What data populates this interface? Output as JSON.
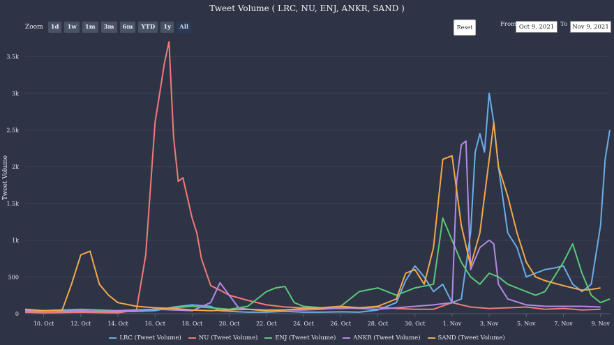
{
  "title": "Tweet Volume ( LRC, NU, ENJ, ANKR, SAND )",
  "zoom": {
    "label": "Zoom",
    "buttons": [
      "1d",
      "1w",
      "1m",
      "3m",
      "6m",
      "YTD",
      "1y",
      "All"
    ],
    "active": "All"
  },
  "reset_label": "Reset",
  "range": {
    "from_label": "From",
    "from_value": "Oct 9, 2021",
    "to_label": "To",
    "to_value": "Nov 9, 2021"
  },
  "chart_data": {
    "type": "line",
    "title": "Tweet Volume ( LRC, NU, ENJ, ANKR, SAND )",
    "ylabel": "Tweet Volume",
    "xlabel": "",
    "ylim": [
      0,
      3700
    ],
    "yticks": [
      0,
      500,
      1000,
      1500,
      2000,
      2500,
      3000,
      3500
    ],
    "ytick_labels": [
      "0",
      "500",
      "1k",
      "1.5k",
      "2k",
      "2.5k",
      "3k",
      "3.5k"
    ],
    "x_range": [
      "2021-10-09",
      "2021-11-09"
    ],
    "xticks": [
      "2021-10-10",
      "2021-10-12",
      "2021-10-14",
      "2021-10-16",
      "2021-10-18",
      "2021-10-20",
      "2021-10-22",
      "2021-10-24",
      "2021-10-26",
      "2021-10-28",
      "2021-10-30",
      "2021-11-01",
      "2021-11-03",
      "2021-11-05",
      "2021-11-07",
      "2021-11-09"
    ],
    "xtick_labels": [
      "10. Oct",
      "12. Oct",
      "14. Oct",
      "16. Oct",
      "18. Oct",
      "20. Oct",
      "22. Oct",
      "24. Oct",
      "26. Oct",
      "28. Oct",
      "30. Oct",
      "1. Nov",
      "3. Nov",
      "5. Nov",
      "7. Nov",
      "9. Nov"
    ],
    "legend_position": "bottom-center",
    "grid": true,
    "series": [
      {
        "name": "LRC (Tweet Volume)",
        "color": "#6aaee8",
        "points": [
          [
            "2021-10-09",
            20
          ],
          [
            "2021-10-10",
            30
          ],
          [
            "2021-10-11",
            40
          ],
          [
            "2021-10-12",
            35
          ],
          [
            "2021-10-13",
            30
          ],
          [
            "2021-10-14",
            25
          ],
          [
            "2021-10-15",
            30
          ],
          [
            "2021-10-16",
            40
          ],
          [
            "2021-10-17",
            90
          ],
          [
            "2021-10-18",
            120
          ],
          [
            "2021-10-19",
            100
          ],
          [
            "2021-10-19 12:00",
            40
          ],
          [
            "2021-10-20",
            30
          ],
          [
            "2021-10-21",
            20
          ],
          [
            "2021-10-22",
            20
          ],
          [
            "2021-10-23",
            30
          ],
          [
            "2021-10-24",
            20
          ],
          [
            "2021-10-25",
            20
          ],
          [
            "2021-10-26",
            25
          ],
          [
            "2021-10-27",
            20
          ],
          [
            "2021-10-28",
            50
          ],
          [
            "2021-10-29",
            150
          ],
          [
            "2021-10-29 12:00",
            450
          ],
          [
            "2021-10-30",
            650
          ],
          [
            "2021-10-30 12:00",
            500
          ],
          [
            "2021-10-31",
            300
          ],
          [
            "2021-10-31 12:00",
            400
          ],
          [
            "2021-11-01",
            150
          ],
          [
            "2021-11-01 12:00",
            200
          ],
          [
            "2021-11-02",
            1100
          ],
          [
            "2021-11-02 06:00",
            2200
          ],
          [
            "2021-11-02 12:00",
            2450
          ],
          [
            "2021-11-02 18:00",
            2200
          ],
          [
            "2021-11-03",
            3000
          ],
          [
            "2021-11-03 06:00",
            2600
          ],
          [
            "2021-11-03 12:00",
            2000
          ],
          [
            "2021-11-04",
            1100
          ],
          [
            "2021-11-04 12:00",
            900
          ],
          [
            "2021-11-05",
            500
          ],
          [
            "2021-11-05 12:00",
            550
          ],
          [
            "2021-11-06",
            600
          ],
          [
            "2021-11-06 12:00",
            620
          ],
          [
            "2021-11-07",
            650
          ],
          [
            "2021-11-07 12:00",
            400
          ],
          [
            "2021-11-08",
            300
          ],
          [
            "2021-11-08 12:00",
            400
          ],
          [
            "2021-11-09",
            1200
          ],
          [
            "2021-11-09 06:00",
            2100
          ],
          [
            "2021-11-09 12:00",
            2500
          ]
        ]
      },
      {
        "name": "NU (Tweet Volume)",
        "color": "#f07b78",
        "points": [
          [
            "2021-10-09",
            20
          ],
          [
            "2021-10-10",
            10
          ],
          [
            "2021-10-11",
            15
          ],
          [
            "2021-10-12",
            20
          ],
          [
            "2021-10-13",
            15
          ],
          [
            "2021-10-14",
            10
          ],
          [
            "2021-10-15",
            50
          ],
          [
            "2021-10-15 12:00",
            800
          ],
          [
            "2021-10-16",
            2600
          ],
          [
            "2021-10-16 06:00",
            3000
          ],
          [
            "2021-10-16 12:00",
            3400
          ],
          [
            "2021-10-16 18:00",
            3700
          ],
          [
            "2021-10-17",
            2400
          ],
          [
            "2021-10-17 06:00",
            1800
          ],
          [
            "2021-10-17 12:00",
            1850
          ],
          [
            "2021-10-18",
            1300
          ],
          [
            "2021-10-18 06:00",
            1100
          ],
          [
            "2021-10-18 12:00",
            750
          ],
          [
            "2021-10-19",
            380
          ],
          [
            "2021-10-19 12:00",
            320
          ],
          [
            "2021-10-20",
            250
          ],
          [
            "2021-10-21",
            180
          ],
          [
            "2021-10-22",
            120
          ],
          [
            "2021-10-23",
            90
          ],
          [
            "2021-10-24",
            80
          ],
          [
            "2021-10-25",
            70
          ],
          [
            "2021-10-26",
            70
          ],
          [
            "2021-10-27",
            80
          ],
          [
            "2021-10-28",
            90
          ],
          [
            "2021-10-29",
            70
          ],
          [
            "2021-10-30",
            60
          ],
          [
            "2021-10-31",
            60
          ],
          [
            "2021-11-01",
            150
          ],
          [
            "2021-11-02",
            90
          ],
          [
            "2021-11-03",
            70
          ],
          [
            "2021-11-04",
            80
          ],
          [
            "2021-11-05",
            90
          ],
          [
            "2021-11-06",
            60
          ],
          [
            "2021-11-07",
            70
          ],
          [
            "2021-11-08",
            50
          ],
          [
            "2021-11-09",
            60
          ]
        ]
      },
      {
        "name": "ENJ (Tweet Volume)",
        "color": "#5bc978",
        "points": [
          [
            "2021-10-09",
            30
          ],
          [
            "2021-10-10",
            40
          ],
          [
            "2021-10-11",
            50
          ],
          [
            "2021-10-12",
            60
          ],
          [
            "2021-10-13",
            50
          ],
          [
            "2021-10-14",
            40
          ],
          [
            "2021-10-15",
            50
          ],
          [
            "2021-10-16",
            60
          ],
          [
            "2021-10-17",
            80
          ],
          [
            "2021-10-18",
            100
          ],
          [
            "2021-10-19",
            80
          ],
          [
            "2021-10-20",
            60
          ],
          [
            "2021-10-21",
            100
          ],
          [
            "2021-10-21 12:00",
            200
          ],
          [
            "2021-10-22",
            300
          ],
          [
            "2021-10-22 12:00",
            350
          ],
          [
            "2021-10-23",
            370
          ],
          [
            "2021-10-23 12:00",
            150
          ],
          [
            "2021-10-24",
            100
          ],
          [
            "2021-10-25",
            80
          ],
          [
            "2021-10-26",
            100
          ],
          [
            "2021-10-27",
            300
          ],
          [
            "2021-10-28",
            350
          ],
          [
            "2021-10-29",
            250
          ],
          [
            "2021-10-30",
            350
          ],
          [
            "2021-10-31",
            400
          ],
          [
            "2021-10-31 12:00",
            1300
          ],
          [
            "2021-11-01",
            1000
          ],
          [
            "2021-11-01 12:00",
            700
          ],
          [
            "2021-11-02",
            500
          ],
          [
            "2021-11-02 12:00",
            400
          ],
          [
            "2021-11-03",
            550
          ],
          [
            "2021-11-03 12:00",
            500
          ],
          [
            "2021-11-04",
            400
          ],
          [
            "2021-11-05",
            300
          ],
          [
            "2021-11-05 12:00",
            250
          ],
          [
            "2021-11-06",
            300
          ],
          [
            "2021-11-06 12:00",
            500
          ],
          [
            "2021-11-07",
            700
          ],
          [
            "2021-11-07 12:00",
            950
          ],
          [
            "2021-11-08",
            550
          ],
          [
            "2021-11-08 12:00",
            250
          ],
          [
            "2021-11-09",
            150
          ],
          [
            "2021-11-09 12:00",
            200
          ]
        ]
      },
      {
        "name": "ANKR (Tweet Volume)",
        "color": "#b48ae8",
        "points": [
          [
            "2021-10-09",
            50
          ],
          [
            "2021-10-10",
            40
          ],
          [
            "2021-10-11",
            30
          ],
          [
            "2021-10-12",
            40
          ],
          [
            "2021-10-13",
            30
          ],
          [
            "2021-10-14",
            40
          ],
          [
            "2021-10-15",
            50
          ],
          [
            "2021-10-16",
            60
          ],
          [
            "2021-10-17",
            50
          ],
          [
            "2021-10-18",
            40
          ],
          [
            "2021-10-19",
            150
          ],
          [
            "2021-10-19 12:00",
            420
          ],
          [
            "2021-10-20",
            250
          ],
          [
            "2021-10-20 12:00",
            80
          ],
          [
            "2021-10-21",
            60
          ],
          [
            "2021-10-22",
            50
          ],
          [
            "2021-10-23",
            50
          ],
          [
            "2021-10-24",
            50
          ],
          [
            "2021-10-25",
            60
          ],
          [
            "2021-10-26",
            80
          ],
          [
            "2021-10-27",
            70
          ],
          [
            "2021-10-28",
            60
          ],
          [
            "2021-10-29",
            80
          ],
          [
            "2021-10-30",
            100
          ],
          [
            "2021-10-31",
            120
          ],
          [
            "2021-11-01",
            150
          ],
          [
            "2021-11-01 06:00",
            1800
          ],
          [
            "2021-11-01 12:00",
            2300
          ],
          [
            "2021-11-01 18:00",
            2350
          ],
          [
            "2021-11-02",
            600
          ],
          [
            "2021-11-02 12:00",
            900
          ],
          [
            "2021-11-03",
            1000
          ],
          [
            "2021-11-03 06:00",
            950
          ],
          [
            "2021-11-03 12:00",
            400
          ],
          [
            "2021-11-04",
            200
          ],
          [
            "2021-11-05",
            120
          ],
          [
            "2021-11-06",
            100
          ],
          [
            "2021-11-07",
            100
          ],
          [
            "2021-11-08",
            100
          ],
          [
            "2021-11-09",
            90
          ]
        ]
      },
      {
        "name": "SAND (Tweet Volume)",
        "color": "#f4a84a",
        "points": [
          [
            "2021-10-09",
            60
          ],
          [
            "2021-10-10",
            40
          ],
          [
            "2021-10-11",
            50
          ],
          [
            "2021-10-11 12:00",
            400
          ],
          [
            "2021-10-12",
            800
          ],
          [
            "2021-10-12 12:00",
            850
          ],
          [
            "2021-10-13",
            400
          ],
          [
            "2021-10-13 12:00",
            250
          ],
          [
            "2021-10-14",
            150
          ],
          [
            "2021-10-15",
            100
          ],
          [
            "2021-10-16",
            80
          ],
          [
            "2021-10-17",
            70
          ],
          [
            "2021-10-18",
            50
          ],
          [
            "2021-10-19",
            40
          ],
          [
            "2021-10-20",
            50
          ],
          [
            "2021-10-21",
            60
          ],
          [
            "2021-10-22",
            40
          ],
          [
            "2021-10-23",
            50
          ],
          [
            "2021-10-24",
            70
          ],
          [
            "2021-10-25",
            80
          ],
          [
            "2021-10-26",
            100
          ],
          [
            "2021-10-27",
            80
          ],
          [
            "2021-10-28",
            100
          ],
          [
            "2021-10-29",
            200
          ],
          [
            "2021-10-29 12:00",
            550
          ],
          [
            "2021-10-30",
            600
          ],
          [
            "2021-10-30 12:00",
            400
          ],
          [
            "2021-10-31",
            900
          ],
          [
            "2021-10-31 12:00",
            2100
          ],
          [
            "2021-11-01",
            2150
          ],
          [
            "2021-11-01 12:00",
            1200
          ],
          [
            "2021-11-02",
            650
          ],
          [
            "2021-11-02 12:00",
            1100
          ],
          [
            "2021-11-03",
            2100
          ],
          [
            "2021-11-03 06:00",
            2600
          ],
          [
            "2021-11-03 12:00",
            2000
          ],
          [
            "2021-11-04",
            1600
          ],
          [
            "2021-11-04 12:00",
            1100
          ],
          [
            "2021-11-05",
            700
          ],
          [
            "2021-11-05 12:00",
            500
          ],
          [
            "2021-11-06",
            450
          ],
          [
            "2021-11-07",
            380
          ],
          [
            "2021-11-08",
            320
          ],
          [
            "2021-11-08 12:00",
            330
          ],
          [
            "2021-11-09",
            350
          ]
        ]
      }
    ]
  }
}
